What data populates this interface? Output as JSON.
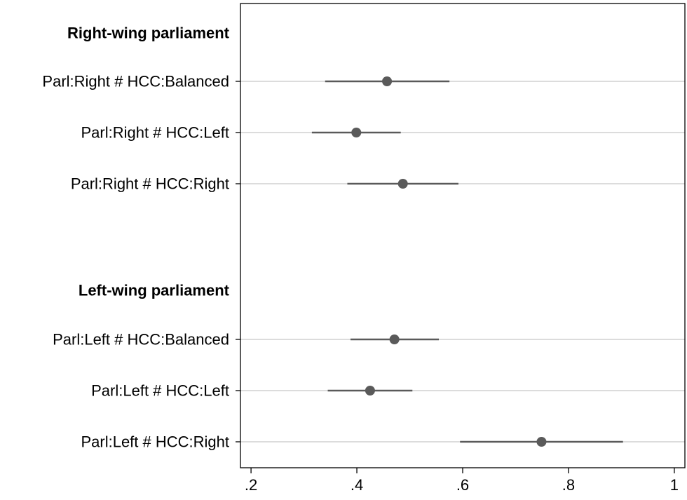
{
  "chart_data": {
    "type": "scatter",
    "style": "coefficient-plot",
    "title": "",
    "xlabel": "",
    "ylabel": "",
    "xlim": [
      0.18,
      1.02
    ],
    "xticks": [
      0.2,
      0.4,
      0.6,
      0.8,
      1.0
    ],
    "xtick_labels": [
      ".2",
      ".4",
      ".6",
      ".8",
      "1"
    ],
    "grid": "horizontal",
    "colors": {
      "marker": "#5a5a5a",
      "ci": "#5a5a5a",
      "grid": "#dcdcdc",
      "axis": "#000000"
    },
    "groups": [
      {
        "heading": "Right-wing parliament",
        "rows": [
          {
            "label": "Parl:Right # HCC:Balanced",
            "estimate": 0.457,
            "ci": [
              0.34,
              0.575
            ]
          },
          {
            "label": "Parl:Right # HCC:Left",
            "estimate": 0.399,
            "ci": [
              0.315,
              0.483
            ]
          },
          {
            "label": "Parl:Right # HCC:Right",
            "estimate": 0.487,
            "ci": [
              0.382,
              0.592
            ]
          }
        ]
      },
      {
        "heading": "Left-wing parliament",
        "rows": [
          {
            "label": "Parl:Left # HCC:Balanced",
            "estimate": 0.471,
            "ci": [
              0.388,
              0.555
            ]
          },
          {
            "label": "Parl:Left # HCC:Left",
            "estimate": 0.425,
            "ci": [
              0.345,
              0.505
            ]
          },
          {
            "label": "Parl:Left # HCC:Right",
            "estimate": 0.749,
            "ci": [
              0.595,
              0.903
            ]
          }
        ]
      }
    ]
  }
}
